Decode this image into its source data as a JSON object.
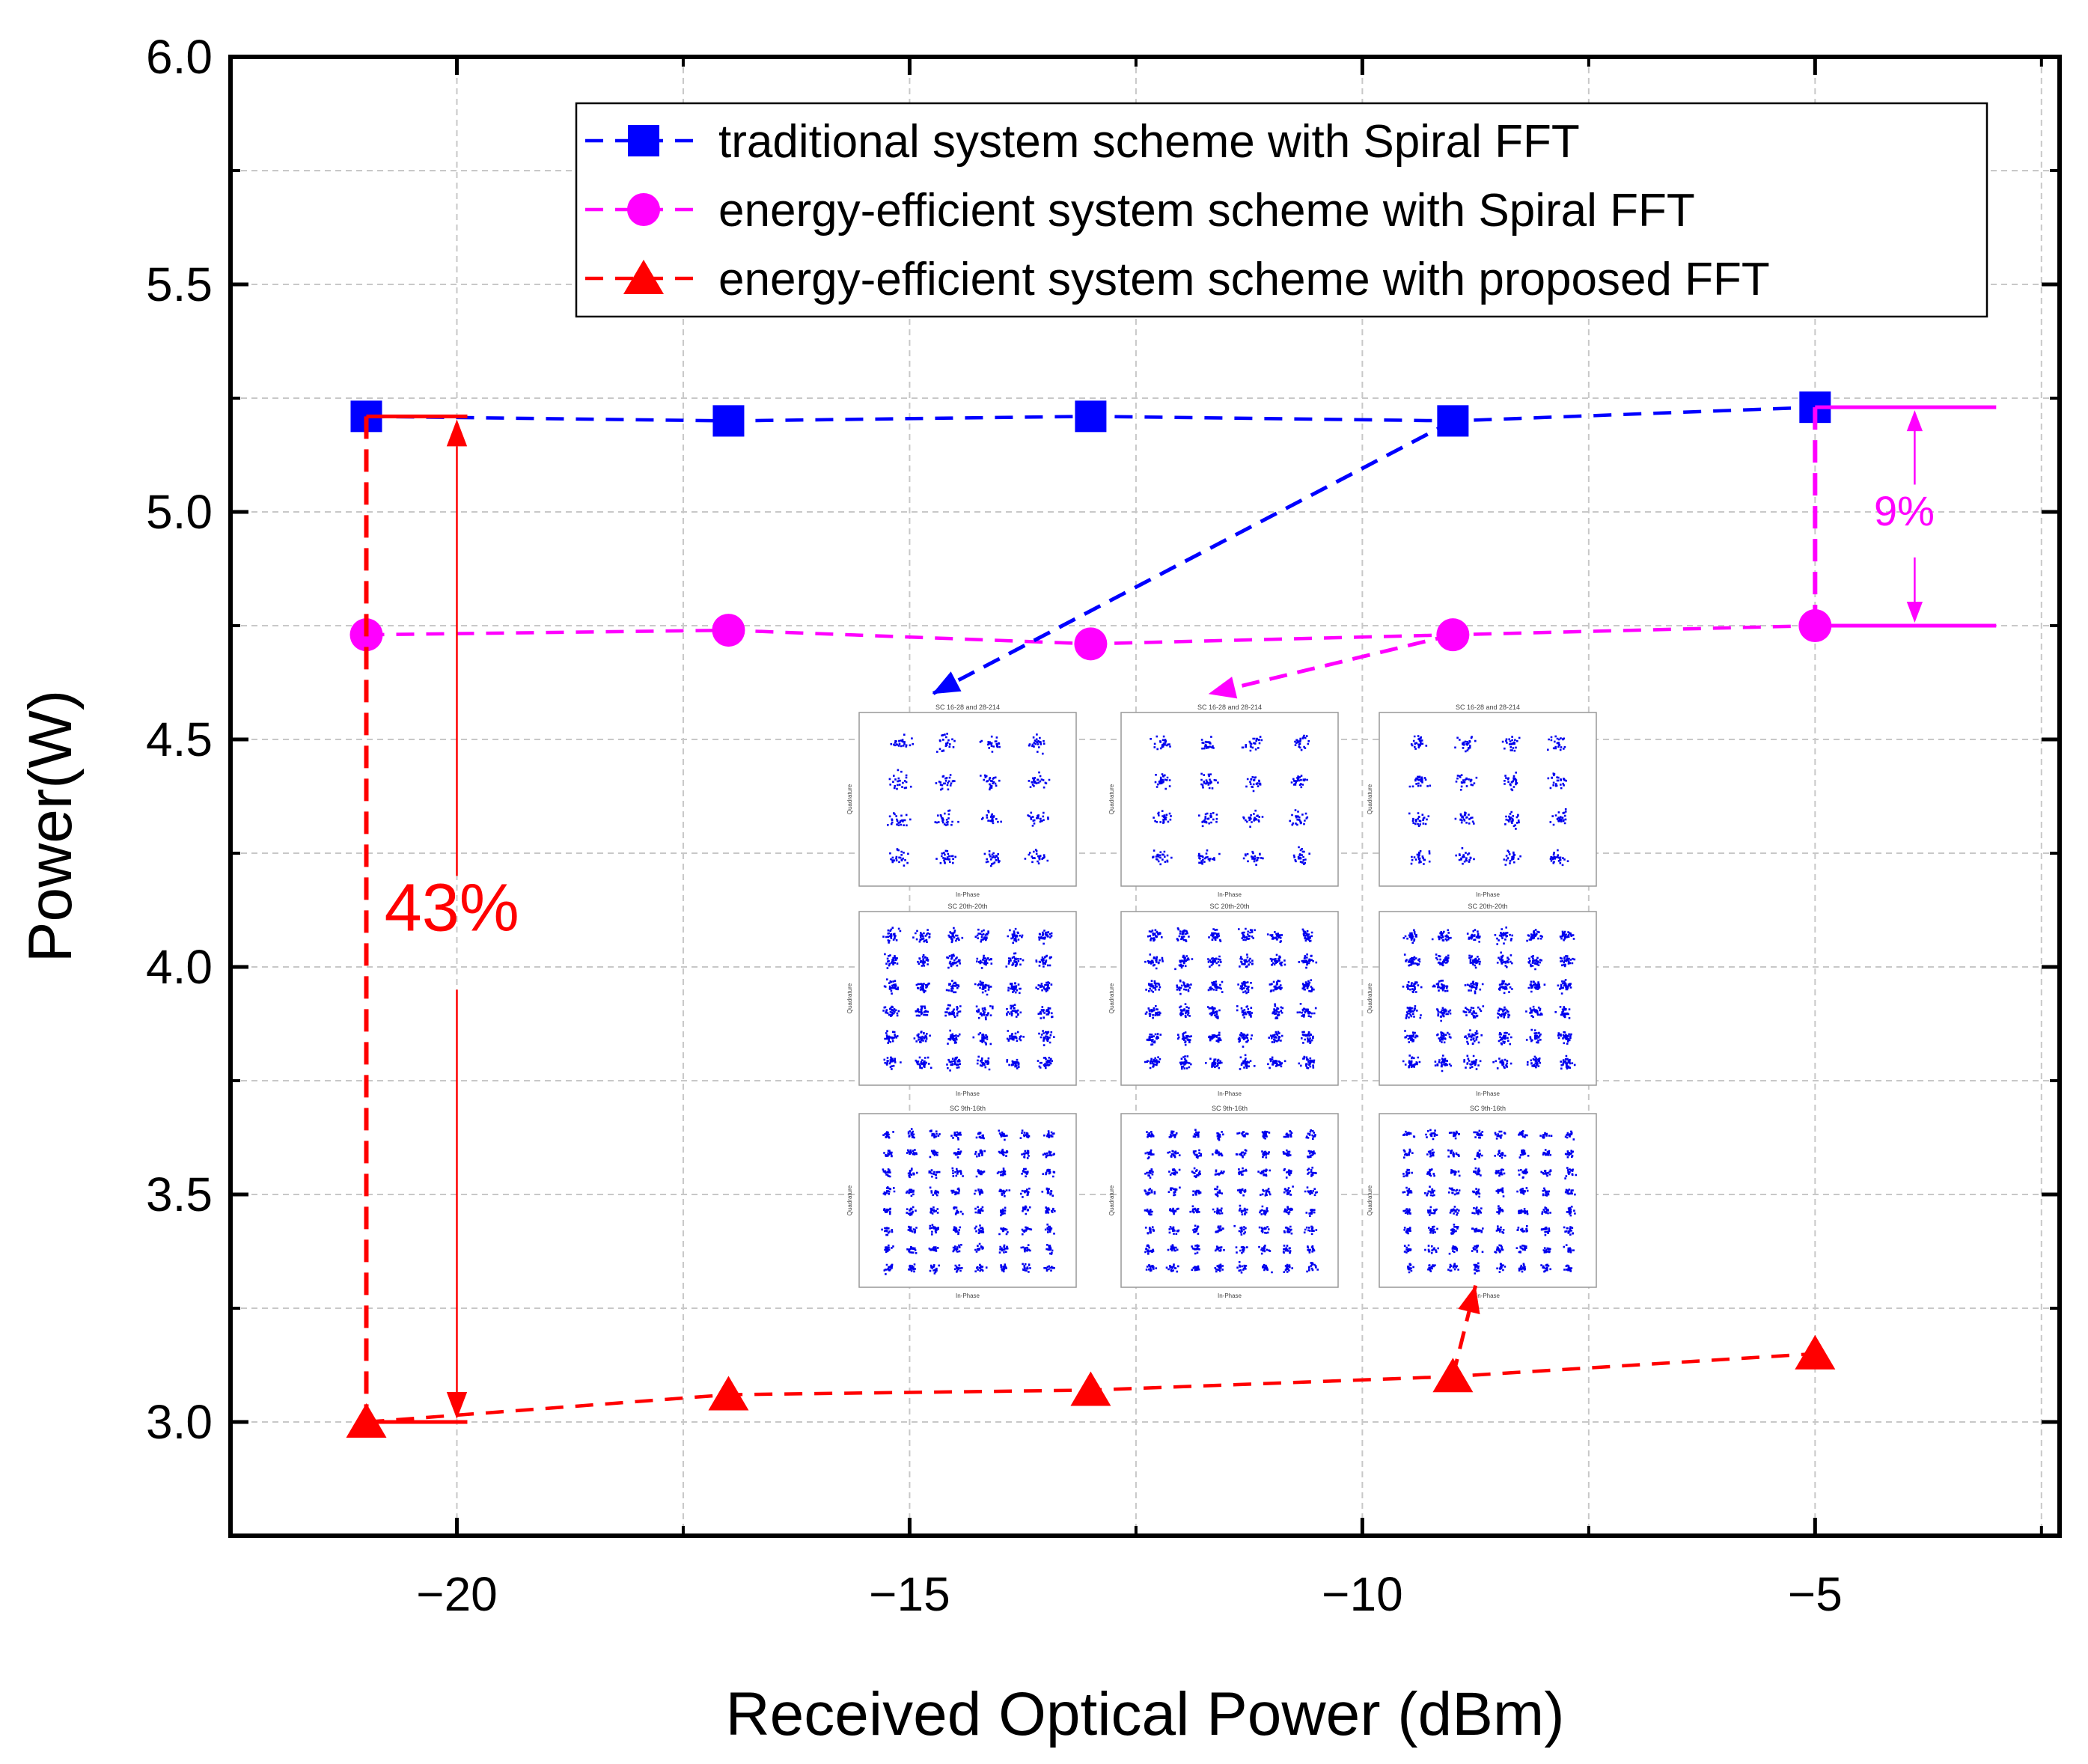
{
  "chart_data": {
    "type": "line",
    "title": "",
    "xlabel": "Received Optical Power (dBm)",
    "ylabel": "Power(W)",
    "xlim": [
      -22.5,
      -2.3
    ],
    "ylim": [
      2.75,
      6.0
    ],
    "x_ticks": [
      -20,
      -15,
      -10,
      -5
    ],
    "x_tick_labels": [
      "−20",
      "−15",
      "−10",
      "−5"
    ],
    "y_ticks": [
      3.0,
      3.5,
      4.0,
      4.5,
      5.0,
      5.5,
      6.0
    ],
    "y_tick_labels": [
      "3.0",
      "3.5",
      "4.0",
      "4.5",
      "5.0",
      "5.5",
      "6.0"
    ],
    "grid": true,
    "legend_position": "top-right",
    "x": [
      -21,
      -17,
      -13,
      -9,
      -5
    ],
    "series": [
      {
        "name": "traditional system scheme with Spiral FFT",
        "color": "#0000ff",
        "marker": "square",
        "values": [
          5.21,
          5.2,
          5.21,
          5.2,
          5.23
        ]
      },
      {
        "name": "energy-efficient system scheme with Spiral FFT",
        "color": "#ff00ff",
        "marker": "circle",
        "values": [
          4.73,
          4.74,
          4.71,
          4.73,
          4.75
        ]
      },
      {
        "name": "energy-efficient system scheme with proposed FFT",
        "color": "#ff0000",
        "marker": "triangle",
        "values": [
          3.0,
          3.06,
          3.07,
          3.1,
          3.15
        ]
      }
    ],
    "annotations": [
      {
        "text": "43%",
        "color": "#ff0000",
        "between_series": [
          0,
          2
        ],
        "at_x": -21
      },
      {
        "text": "9%",
        "color": "#ff00ff",
        "between_series": [
          0,
          1
        ],
        "at_x": -5
      }
    ],
    "inset": {
      "description_rows": 3,
      "description_cols": 3,
      "row_titles": [
        "SC 16-28 and 28-214",
        "SC 20th-20th",
        "SC 9th-16th"
      ],
      "axis_xlabel": "In-Phase",
      "axis_ylabel": "Quadrature",
      "grid_sizes": [
        4,
        6,
        8
      ]
    }
  }
}
